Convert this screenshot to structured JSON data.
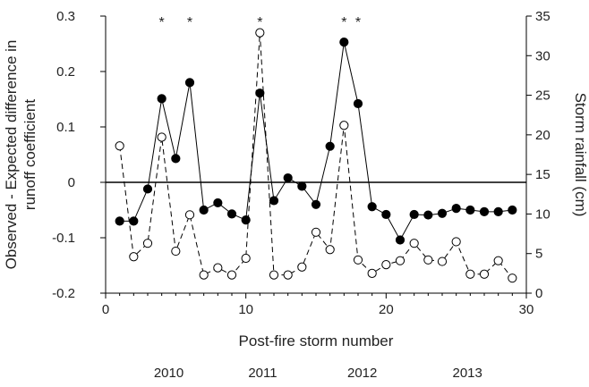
{
  "chart_data": {
    "type": "line",
    "xlabel": "Post-fire storm number",
    "ylabel_left": "Observed - Expected difference in runoff coefficient",
    "ylabel_left_lines": [
      "Observed - Expected difference in",
      "runoff coefficient"
    ],
    "ylabel_right": "Storm rainfall (cm)",
    "xlim": [
      0,
      30
    ],
    "ylim_left": [
      -0.2,
      0.3
    ],
    "ylim_right": [
      0,
      35
    ],
    "x_ticks": [
      "0",
      "10",
      "20",
      "30"
    ],
    "y_left_ticks": [
      "-0.2",
      "-0.1",
      "0",
      "0.1",
      "0.2",
      "0.3"
    ],
    "y_right_ticks": [
      "0",
      "5",
      "10",
      "15",
      "20",
      "25",
      "30",
      "35"
    ],
    "zero_line": 0,
    "grid": false,
    "series": [
      {
        "axis": "left",
        "style": "solid line, filled circles",
        "x": [
          1,
          2,
          3,
          4,
          5,
          6,
          7,
          8,
          9,
          10,
          11,
          12,
          13,
          14,
          15,
          16,
          17,
          18,
          19,
          20,
          21,
          22,
          23,
          24,
          25,
          26,
          27,
          28,
          29
        ],
        "values": [
          -0.07,
          -0.07,
          -0.012,
          0.151,
          0.043,
          0.18,
          -0.05,
          -0.037,
          -0.057,
          -0.068,
          0.161,
          -0.033,
          0.008,
          -0.007,
          -0.04,
          0.065,
          0.253,
          0.142,
          -0.044,
          -0.058,
          -0.104,
          -0.058,
          -0.059,
          -0.056,
          -0.047,
          -0.05,
          -0.053,
          -0.053,
          -0.05
        ]
      },
      {
        "axis": "right",
        "style": "dashed line, open circles",
        "x": [
          1,
          2,
          3,
          4,
          5,
          6,
          7,
          8,
          9,
          10,
          11,
          12,
          13,
          14,
          15,
          16,
          17,
          18,
          19,
          20,
          21,
          22,
          23,
          24,
          25,
          26,
          27,
          28,
          29
        ],
        "values": [
          18.6,
          4.6,
          6.3,
          19.7,
          5.3,
          9.9,
          2.3,
          3.2,
          2.3,
          4.4,
          32.9,
          2.3,
          2.3,
          3.3,
          7.7,
          5.5,
          21.2,
          4.2,
          2.5,
          3.6,
          4.1,
          6.3,
          4.2,
          4.0,
          6.5,
          2.4,
          2.4,
          4.1,
          1.9
        ]
      }
    ],
    "significance_markers": {
      "symbol": "*",
      "x": [
        4,
        6,
        11,
        17,
        18
      ]
    },
    "years": [
      {
        "label": "2010",
        "x": 4.5
      },
      {
        "label": "2011",
        "x": 11.2
      },
      {
        "label": "2012",
        "x": 18.3
      },
      {
        "label": "2013",
        "x": 25.8
      }
    ]
  }
}
